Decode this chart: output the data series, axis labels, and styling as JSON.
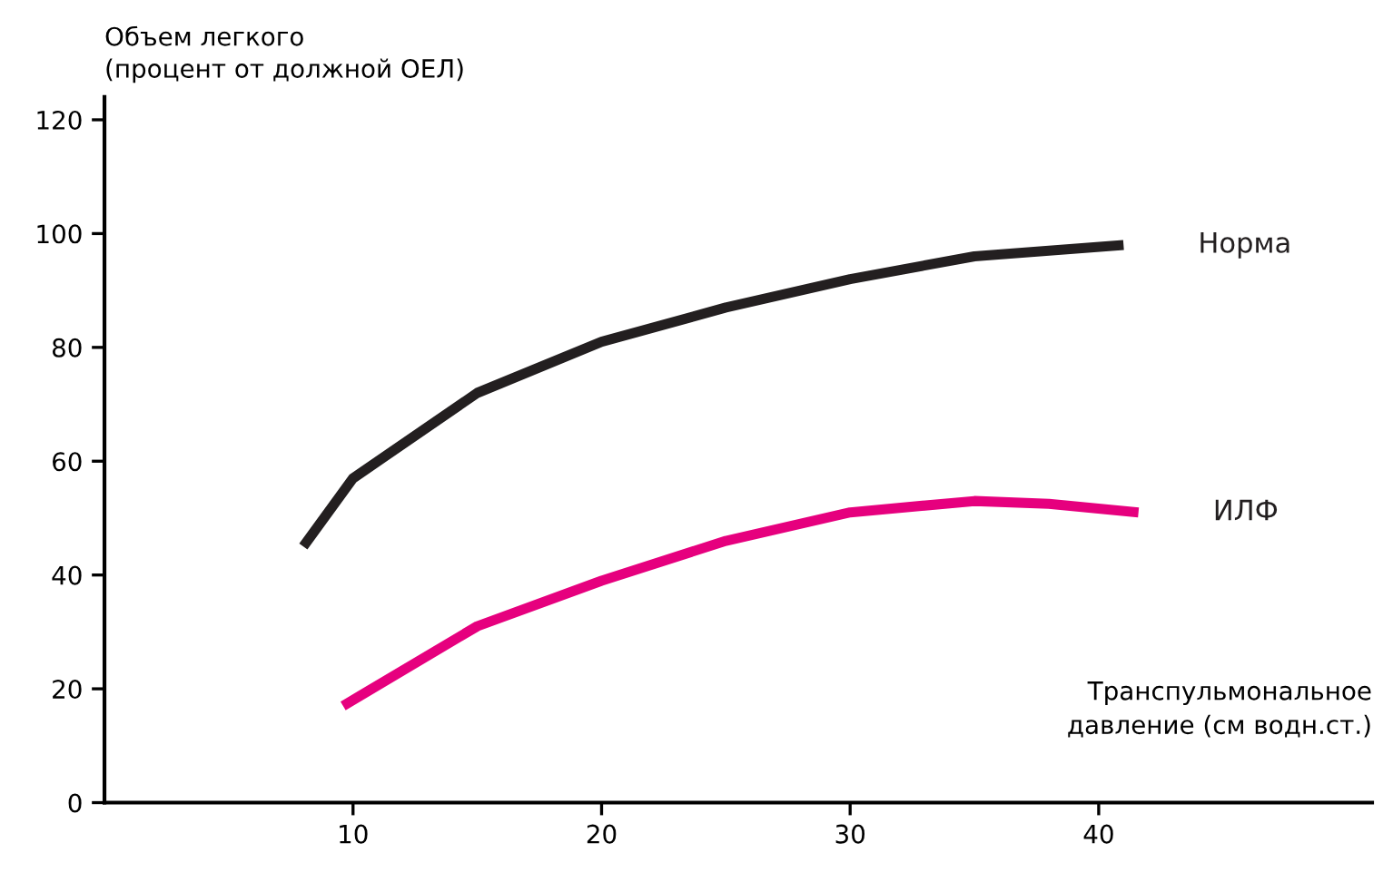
{
  "chart_data": {
    "type": "line",
    "ylabel": "Объем легкого\n(процент от должной ОЕЛ)",
    "xlabel": "Транспульмональное\nдавление (см водн.ст.)",
    "series": [
      {
        "name": "Норма",
        "color": "#231f20",
        "x": [
          8,
          10,
          15,
          20,
          25,
          30,
          35,
          41
        ],
        "values": [
          45,
          57,
          72,
          81,
          87,
          92,
          96,
          98
        ]
      },
      {
        "name": "ИЛФ",
        "color": "#e6007e",
        "x": [
          9.6,
          15,
          20,
          25,
          30,
          35,
          38,
          41.6
        ],
        "values": [
          17,
          31,
          39,
          46,
          51,
          53,
          52.5,
          51
        ]
      }
    ],
    "xlim": [
      0,
      51
    ],
    "xticks": [
      10,
      20,
      30,
      40
    ],
    "ylim": [
      0,
      124
    ],
    "yticks": [
      0,
      20,
      40,
      60,
      80,
      100,
      120
    ],
    "grid": false,
    "legend": false,
    "marker": "none",
    "line_style": "solid"
  }
}
